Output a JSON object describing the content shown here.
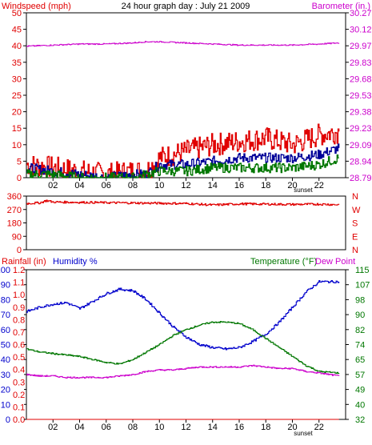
{
  "chart_data": [
    {
      "type": "line",
      "title": "24 hour graph day : July 21 2009",
      "left_label": "Windspeed (mph)",
      "right_label": "Barometer (in.)",
      "x_tick_labels": [
        "02",
        "04",
        "06",
        "08",
        "10",
        "12",
        "14",
        "16",
        "18",
        "20",
        "22"
      ],
      "x_extra_label": "sunset",
      "ylim": [
        0,
        50
      ],
      "y_ticks": [
        0,
        5,
        10,
        15,
        20,
        25,
        30,
        35,
        40,
        45,
        50
      ],
      "y2_ticks": [
        "28.79",
        "28.94",
        "29.09",
        "29.23",
        "29.38",
        "29.53",
        "29.68",
        "29.83",
        "29.97",
        "30.12",
        "30.27"
      ],
      "y2lim": [
        28.79,
        30.27
      ],
      "x": [
        0,
        2,
        4,
        6,
        8,
        9,
        10,
        12,
        14,
        16,
        18,
        20,
        22,
        23.5
      ],
      "series": [
        {
          "color": "#e00000",
          "values": [
            4,
            3,
            2,
            1,
            2,
            2,
            6,
            8,
            10,
            11,
            12,
            10,
            13,
            14
          ]
        },
        {
          "color": "#000099",
          "values": [
            3,
            2,
            1,
            0,
            1,
            1,
            4,
            4,
            5,
            6,
            6,
            6,
            7,
            9
          ]
        },
        {
          "color": "#007700",
          "values": [
            1,
            1,
            0,
            0,
            0,
            1,
            2,
            2,
            3,
            3,
            3,
            3,
            4,
            6
          ]
        },
        {
          "axis": "right",
          "color": "#cc00cc",
          "values": [
            29.97,
            29.98,
            29.99,
            29.99,
            30.0,
            30.01,
            30.01,
            30.0,
            29.99,
            29.98,
            29.98,
            29.98,
            29.99,
            30.0
          ]
        }
      ]
    },
    {
      "type": "line",
      "ylim": [
        0,
        360
      ],
      "y_ticks": [
        0,
        90,
        180,
        270,
        360
      ],
      "y2_ticks": [
        "N",
        "E",
        "S",
        "W",
        "N"
      ],
      "x": [
        0,
        1,
        1.5,
        2,
        10,
        12,
        14,
        16,
        18,
        20,
        22,
        23.5
      ],
      "series": [
        {
          "color": "#e00000",
          "values": [
            310,
            315,
            330,
            320,
            312,
            310,
            300,
            308,
            306,
            304,
            306,
            302
          ]
        }
      ]
    },
    {
      "type": "line",
      "left_label_1": "Rainfall (in)",
      "left_label_2": "Humidity %",
      "right_label_1": "Temperature (°F)",
      "right_label_2": "Dew Point",
      "x_tick_labels": [
        "02",
        "04",
        "06",
        "08",
        "10",
        "12",
        "14",
        "16",
        "18",
        "20",
        "22"
      ],
      "x_extra_label": "sunset",
      "rain_ticks": [
        "0.0",
        "0.1",
        "0.2",
        "0.3",
        "0.4",
        "0.5",
        "0.6",
        "0.7",
        "0.8",
        "0.9",
        "1.0",
        "1.1",
        "1.2"
      ],
      "humidity_ticks": [
        "0",
        "10",
        "20",
        "30",
        "40",
        "50",
        "60",
        "70",
        "80",
        "90",
        "100"
      ],
      "temp_ticks": [
        "32",
        "40",
        "49",
        "57",
        "65",
        "74",
        "82",
        "90",
        "98",
        "107",
        "115"
      ],
      "humidity_lim": [
        0,
        100
      ],
      "x": [
        0,
        1,
        2,
        3,
        4,
        5,
        6,
        7,
        8,
        9,
        10,
        11,
        12,
        13,
        14,
        15,
        16,
        17,
        18,
        19,
        20,
        21,
        22,
        23.5
      ],
      "series": [
        {
          "name": "Humidity %",
          "color": "#0000cc",
          "values": [
            72,
            75,
            77,
            78,
            74,
            79,
            84,
            87,
            86,
            80,
            71,
            62,
            55,
            50,
            48,
            47,
            48,
            52,
            57,
            65,
            75,
            85,
            92,
            92
          ]
        },
        {
          "name": "Temperature (°F)",
          "color": "#007700",
          "values": [
            47,
            45,
            44,
            43,
            42,
            40,
            38,
            37,
            40,
            45,
            50,
            56,
            60,
            63,
            65,
            65,
            64,
            60,
            54,
            48,
            42,
            36,
            32,
            31
          ]
        },
        {
          "name": "Dew Point",
          "color": "#cc00cc",
          "values": [
            30,
            29,
            29,
            28,
            28,
            28,
            28,
            29,
            30,
            32,
            33,
            33,
            34,
            35,
            35,
            35,
            35,
            36,
            35,
            34,
            34,
            32,
            31,
            29
          ]
        },
        {
          "name": "Rainfall (in)",
          "color": "#e00000",
          "values": [
            0,
            0,
            0,
            0,
            0,
            0,
            0,
            0,
            0,
            0,
            0,
            0,
            0,
            0,
            0,
            0,
            0,
            0,
            0,
            0,
            0,
            0,
            0,
            0
          ]
        }
      ]
    }
  ],
  "colors": {
    "red": "#e00000",
    "blue": "#0000cc",
    "green": "#007700",
    "magenta": "#cc00cc",
    "frame": "#000000"
  }
}
